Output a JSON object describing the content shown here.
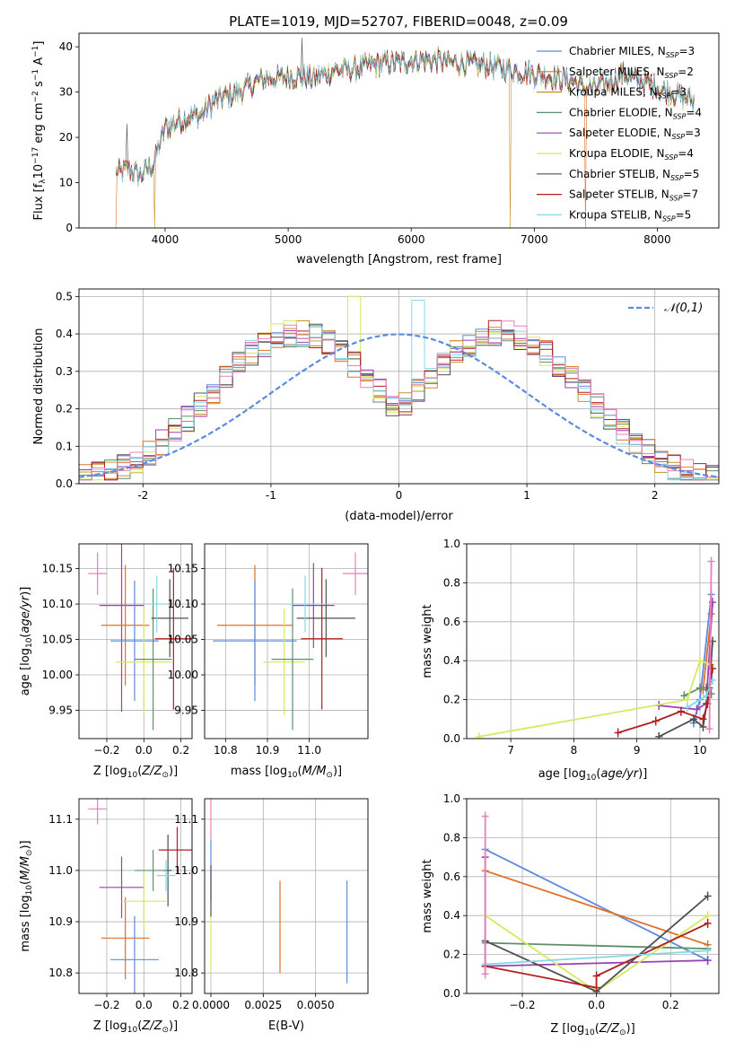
{
  "figure_title": "PLATE=1019, MJD=52707, FIBERID=0048, z=0.09",
  "colors": {
    "Chabrier MILES": "#5b8be0",
    "Salpeter MILES": "#e07028",
    "Kroupa MILES": "#c8902a",
    "Chabrier ELODIE": "#5f8f68",
    "Salpeter ELODIE": "#9b3fb5",
    "Kroupa ELODIE": "#d8e860",
    "Chabrier STELIB": "#505050",
    "Salpeter STELIB": "#b02020",
    "Kroupa STELIB": "#80d8e8",
    "pink": "#e880b8"
  },
  "chart_data": [
    {
      "type": "line",
      "title": "PLATE=1019, MJD=52707, FIBERID=0048, z=0.09",
      "xlabel": "wavelength [Angstrom, rest frame]",
      "ylabel": "Flux [f_λ 10^-17 erg cm^-2 s^-1 A^-1]",
      "xlim": [
        3300,
        8500
      ],
      "ylim": [
        0,
        43
      ],
      "xticks": [
        4000,
        5000,
        6000,
        7000,
        8000
      ],
      "yticks": [
        0,
        10,
        20,
        30,
        40
      ],
      "legend_position": "top-right",
      "continuum": [
        [
          3600,
          12
        ],
        [
          3700,
          13
        ],
        [
          3800,
          11.5
        ],
        [
          3900,
          14
        ],
        [
          3950,
          18
        ],
        [
          4000,
          22
        ],
        [
          4100,
          23.5
        ],
        [
          4200,
          24.5
        ],
        [
          4300,
          25
        ],
        [
          4400,
          28
        ],
        [
          4500,
          29
        ],
        [
          4600,
          30
        ],
        [
          4700,
          31.5
        ],
        [
          4800,
          33
        ],
        [
          4900,
          33
        ],
        [
          5000,
          33.5
        ],
        [
          5100,
          33.5
        ],
        [
          5200,
          33
        ],
        [
          5300,
          34
        ],
        [
          5400,
          35
        ],
        [
          5500,
          35
        ],
        [
          5600,
          35.5
        ],
        [
          5700,
          36
        ],
        [
          5800,
          36.5
        ],
        [
          5900,
          36.5
        ],
        [
          6000,
          37
        ],
        [
          6100,
          37
        ],
        [
          6200,
          37
        ],
        [
          6300,
          36.5
        ],
        [
          6400,
          36.5
        ],
        [
          6500,
          36
        ],
        [
          6600,
          36
        ],
        [
          6700,
          35.5
        ],
        [
          6800,
          35
        ],
        [
          6900,
          34.5
        ],
        [
          7000,
          34
        ],
        [
          7100,
          33.5
        ],
        [
          7200,
          33
        ],
        [
          7300,
          32.5
        ],
        [
          7400,
          31
        ],
        [
          7500,
          31
        ],
        [
          7600,
          32
        ],
        [
          7700,
          34
        ],
        [
          7800,
          33
        ],
        [
          7900,
          32
        ],
        [
          8000,
          31
        ],
        [
          8100,
          30
        ],
        [
          8200,
          29
        ],
        [
          8300,
          28
        ]
      ],
      "series": [
        {
          "name": "Chabrier MILES, N_SSP=3",
          "label_main": "Chabrier MILES, N",
          "label_sub": "SSP",
          "label_tail": "=3"
        },
        {
          "name": "Salpeter MILES, N_SSP=2",
          "label_main": "Salpeter MILES, N",
          "label_sub": "SSP",
          "label_tail": "=2"
        },
        {
          "name": "Kroupa MILES, N_SSP=3",
          "label_main": "Kroupa MILES, N",
          "label_sub": "SSP",
          "label_tail": "=3"
        },
        {
          "name": "Chabrier ELODIE, N_SSP=4",
          "label_main": "Chabrier ELODIE, N",
          "label_sub": "SSP",
          "label_tail": "=4"
        },
        {
          "name": "Salpeter ELODIE, N_SSP=3",
          "label_main": "Salpeter ELODIE, N",
          "label_sub": "SSP",
          "label_tail": "=3"
        },
        {
          "name": "Kroupa ELODIE, N_SSP=4",
          "label_main": "Kroupa ELODIE, N",
          "label_sub": "SSP",
          "label_tail": "=4"
        },
        {
          "name": "Chabrier STELIB, N_SSP=5",
          "label_main": "Chabrier STELIB, N",
          "label_sub": "SSP",
          "label_tail": "=5"
        },
        {
          "name": "Salpeter STELIB, N_SSP=7",
          "label_main": "Salpeter STELIB, N",
          "label_sub": "SSP",
          "label_tail": "=7"
        },
        {
          "name": "Kroupa STELIB, N_SSP=5",
          "label_main": "Kroupa STELIB, N",
          "label_sub": "SSP",
          "label_tail": "=5"
        }
      ]
    },
    {
      "type": "histogram",
      "xlabel": "(data-model)/error",
      "ylabel": "Normed distribution",
      "xlim": [
        -2.5,
        2.5
      ],
      "ylim": [
        0,
        0.52
      ],
      "xticks": [
        -2,
        -1,
        0,
        1,
        2
      ],
      "yticks": [
        0.0,
        0.1,
        0.2,
        0.3,
        0.4,
        0.5
      ],
      "grid": true,
      "legend": "𝒩(0,1)",
      "legend_position": "top-right",
      "bin_width": 0.1,
      "series_envelope": [
        0.02,
        0.022,
        0.025,
        0.028,
        0.033,
        0.038,
        0.045,
        0.053,
        0.062,
        0.072,
        0.084,
        0.097,
        0.11,
        0.125,
        0.14,
        0.157,
        0.174,
        0.192,
        0.21,
        0.228,
        0.246,
        0.264,
        0.282,
        0.3,
        0.318,
        0.334,
        0.348,
        0.362,
        0.374,
        0.384,
        0.392,
        0.398,
        0.401,
        0.402,
        0.401,
        0.398,
        0.392,
        0.384,
        0.374,
        0.362,
        0.348,
        0.334,
        0.318,
        0.3,
        0.282,
        0.264,
        0.246,
        0.228,
        0.21,
        0.192
      ]
    },
    {
      "type": "scatter",
      "xlabel": "Z [log10(Z/Z⊙)]",
      "ylabel": "age  [log10(age/yr)]",
      "xlim": [
        -0.35,
        0.26
      ],
      "ylim": [
        9.91,
        10.185
      ],
      "xticks": [
        -0.2,
        0.0,
        0.2
      ],
      "xtick_labels": [
        "−0.2",
        "0.0",
        "0.2"
      ],
      "yticks": [
        9.95,
        10.0,
        10.05,
        10.1,
        10.15
      ],
      "ytick_labels": [
        "9.95",
        "10.00",
        "10.05",
        "10.10",
        "10.15"
      ],
      "grid": true,
      "points": [
        {
          "series": "pink",
          "x": -0.25,
          "y": 10.143,
          "xerr": 0.05,
          "yerr": 0.03
        },
        {
          "series": "Salpeter ELODIE",
          "x": -0.12,
          "y": 10.098,
          "xerr": 0.12,
          "yerr": 0.15
        },
        {
          "series": "Salpeter MILES",
          "x": -0.1,
          "y": 10.07,
          "xerr": 0.13,
          "yerr": 0.085
        },
        {
          "series": "Chabrier MILES",
          "x": -0.05,
          "y": 10.048,
          "xerr": 0.13,
          "yerr": 0.085
        },
        {
          "series": "Kroupa ELODIE",
          "x": 0.0,
          "y": 10.018,
          "xerr": 0.15,
          "yerr": 0.075
        },
        {
          "series": "Chabrier ELODIE",
          "x": 0.05,
          "y": 10.022,
          "xerr": 0.1,
          "yerr": 0.1
        },
        {
          "series": "Chabrier STELIB",
          "x": 0.14,
          "y": 10.08,
          "xerr": 0.1,
          "yerr": 0.055
        },
        {
          "series": "Salpeter STELIB",
          "x": 0.16,
          "y": 10.051,
          "xerr": 0.1,
          "yerr": 0.1
        },
        {
          "series": "Kroupa STELIB",
          "x": 0.07,
          "y": 10.1,
          "xerr": 0.05,
          "yerr": 0.04
        }
      ]
    },
    {
      "type": "scatter",
      "xlabel": "mass [log10(M/M⊙)]",
      "xlim": [
        10.75,
        11.14
      ],
      "ylim": [
        9.91,
        10.185
      ],
      "xticks": [
        10.8,
        10.9,
        11.0
      ],
      "xtick_labels": [
        "10.8",
        "10.9",
        "11.0"
      ],
      "yticks": [
        9.95,
        10.0,
        10.05,
        10.1,
        10.15
      ],
      "ytick_labels": [
        "9.95",
        "10.00",
        "10.05",
        "10.10",
        "10.15"
      ],
      "grid": true,
      "points": [
        {
          "series": "pink",
          "x": 11.11,
          "y": 10.143,
          "xerr": 0.03,
          "yerr": 0.03
        },
        {
          "series": "Salpeter ELODIE",
          "x": 11.01,
          "y": 10.098,
          "xerr": 0.05,
          "yerr": 0.06
        },
        {
          "series": "Salpeter MILES",
          "x": 10.87,
          "y": 10.07,
          "xerr": 0.09,
          "yerr": 0.085
        },
        {
          "series": "Chabrier MILES",
          "x": 10.87,
          "y": 10.048,
          "xerr": 0.1,
          "yerr": 0.085
        },
        {
          "series": "Kroupa ELODIE",
          "x": 10.94,
          "y": 10.018,
          "xerr": 0.05,
          "yerr": 0.075
        },
        {
          "series": "Chabrier ELODIE",
          "x": 10.96,
          "y": 10.022,
          "xerr": 0.05,
          "yerr": 0.1
        },
        {
          "series": "Chabrier STELIB",
          "x": 11.04,
          "y": 10.08,
          "xerr": 0.07,
          "yerr": 0.055
        },
        {
          "series": "Salpeter STELIB",
          "x": 11.03,
          "y": 10.051,
          "xerr": 0.05,
          "yerr": 0.1
        },
        {
          "series": "Kroupa STELIB",
          "x": 10.99,
          "y": 10.1,
          "xerr": 0.05,
          "yerr": 0.04
        }
      ]
    },
    {
      "type": "line",
      "xlabel": "age  [log10(age/yr)]",
      "ylabel": "mass weight",
      "xlim": [
        6.3,
        10.3
      ],
      "ylim": [
        0,
        1
      ],
      "xticks": [
        7,
        8,
        9,
        10
      ],
      "yticks": [
        0.0,
        0.2,
        0.4,
        0.6,
        0.8,
        1.0
      ],
      "grid": true,
      "series": [
        {
          "name": "Chabrier MILES",
          "points": [
            [
              9.9,
              0.08
            ],
            [
              10.0,
              0.2
            ],
            [
              10.18,
              0.74
            ]
          ]
        },
        {
          "name": "Salpeter MILES",
          "points": [
            [
              10.05,
              0.25
            ],
            [
              10.18,
              0.64
            ]
          ]
        },
        {
          "name": "Chabrier ELODIE",
          "points": [
            [
              9.75,
              0.22
            ],
            [
              10.0,
              0.26
            ],
            [
              10.1,
              0.26
            ],
            [
              10.18,
              0.23
            ]
          ]
        },
        {
          "name": "Salpeter ELODIE",
          "points": [
            [
              9.35,
              0.17
            ],
            [
              9.95,
              0.15
            ],
            [
              10.1,
              0.18
            ],
            [
              10.2,
              0.7
            ]
          ]
        },
        {
          "name": "Kroupa ELODIE",
          "points": [
            [
              6.5,
              0.01
            ],
            [
              9.8,
              0.2
            ],
            [
              10.0,
              0.4
            ],
            [
              10.18,
              0.38
            ]
          ]
        },
        {
          "name": "Chabrier STELIB",
          "points": [
            [
              9.35,
              0.01
            ],
            [
              9.9,
              0.1
            ],
            [
              10.05,
              0.06
            ],
            [
              10.15,
              0.26
            ],
            [
              10.2,
              0.5
            ]
          ]
        },
        {
          "name": "Salpeter STELIB",
          "points": [
            [
              8.7,
              0.03
            ],
            [
              9.3,
              0.09
            ],
            [
              9.7,
              0.14
            ],
            [
              10.05,
              0.1
            ],
            [
              10.12,
              0.18
            ],
            [
              10.2,
              0.36
            ]
          ]
        },
        {
          "name": "Kroupa STELIB",
          "points": [
            [
              9.8,
              0.16
            ],
            [
              10.1,
              0.22
            ],
            [
              10.2,
              0.3
            ]
          ]
        },
        {
          "name": "pink",
          "points": [
            [
              10.15,
              0.05
            ],
            [
              10.18,
              0.91
            ]
          ]
        }
      ]
    },
    {
      "type": "scatter",
      "xlabel": "Z [log10(Z/Z⊙)]",
      "ylabel": "mass [log10(M/M⊙)]",
      "xlim": [
        -0.35,
        0.26
      ],
      "ylim": [
        10.76,
        11.14
      ],
      "xticks": [
        -0.2,
        0.0,
        0.2
      ],
      "xtick_labels": [
        "−0.2",
        "0.0",
        "0.2"
      ],
      "yticks": [
        10.8,
        10.9,
        11.0,
        11.1
      ],
      "ytick_labels": [
        "10.8",
        "10.9",
        "11.0",
        "11.1"
      ],
      "grid": true,
      "points": [
        {
          "series": "pink",
          "x": -0.25,
          "y": 11.12,
          "xerr": 0.05,
          "yerr": 0.03
        },
        {
          "series": "Salpeter ELODIE",
          "x": -0.12,
          "y": 10.967,
          "xerr": 0.12,
          "yerr": 0.06
        },
        {
          "series": "Salpeter MILES",
          "x": -0.1,
          "y": 10.868,
          "xerr": 0.13,
          "yerr": 0.08
        },
        {
          "series": "Chabrier MILES",
          "x": -0.05,
          "y": 10.826,
          "xerr": 0.13,
          "yerr": 0.085
        },
        {
          "series": "Kroupa ELODIE",
          "x": 0.0,
          "y": 10.94,
          "xerr": 0.12,
          "yerr": 0.055
        },
        {
          "series": "Chabrier ELODIE",
          "x": 0.05,
          "y": 11.0,
          "xerr": 0.1,
          "yerr": 0.04
        },
        {
          "series": "Chabrier STELIB",
          "x": 0.13,
          "y": 11.0,
          "xerr": 0.02,
          "yerr": 0.07
        },
        {
          "series": "Salpeter STELIB",
          "x": 0.18,
          "y": 11.04,
          "xerr": 0.1,
          "yerr": 0.045
        },
        {
          "series": "Kroupa STELIB",
          "x": 0.12,
          "y": 10.99,
          "xerr": 0.05,
          "yerr": 0.03
        }
      ]
    },
    {
      "type": "scatter",
      "xlabel": "E(B-V)",
      "xlim": [
        -0.0003,
        0.0075
      ],
      "ylim": [
        10.76,
        11.14
      ],
      "xticks": [
        0.0,
        0.0025,
        0.005
      ],
      "xtick_labels": [
        "0.0000",
        "0.0025",
        "0.0050"
      ],
      "yticks": [
        10.8,
        10.9,
        11.0,
        11.1
      ],
      "ytick_labels": [
        "10.8",
        "10.9",
        "11.0",
        "11.1"
      ],
      "grid": true,
      "points": [
        {
          "series": "pink",
          "x": 0.0,
          "y": 11.1,
          "xerr": 0,
          "yerr": 0.04
        },
        {
          "series": "Chabrier MILES",
          "x": 0.0,
          "y": 11.0,
          "xerr": 0,
          "yerr": 0.06
        },
        {
          "series": "Kroupa ELODIE",
          "x": 0.0,
          "y": 10.86,
          "xerr": 0,
          "yerr": 0.06
        },
        {
          "series": "Chabrier STELIB",
          "x": 0.0,
          "y": 10.96,
          "xerr": 0,
          "yerr": 0.05
        },
        {
          "series": "Salpeter MILES",
          "x": 0.0033,
          "y": 10.89,
          "xerr": 0,
          "yerr": 0.09
        },
        {
          "series": "Chabrier MILES",
          "x": 0.0065,
          "y": 10.88,
          "xerr": 0,
          "yerr": 0.1
        }
      ]
    },
    {
      "type": "line",
      "xlabel": "Z [log10(Z/Z⊙)]",
      "ylabel": "mass weight",
      "xlim": [
        -0.35,
        0.33
      ],
      "ylim": [
        0,
        1
      ],
      "xticks": [
        -0.2,
        0.0,
        0.2
      ],
      "xtick_labels": [
        "−0.2",
        "0.0",
        "0.2"
      ],
      "yticks": [
        0.0,
        0.2,
        0.4,
        0.6,
        0.8,
        1.0
      ],
      "grid": true,
      "series": [
        {
          "name": "Chabrier MILES",
          "points": [
            [
              -0.3,
              0.74
            ],
            [
              0.3,
              0.17
            ]
          ]
        },
        {
          "name": "Salpeter MILES",
          "points": [
            [
              -0.3,
              0.63
            ],
            [
              0.3,
              0.25
            ]
          ]
        },
        {
          "name": "Chabrier ELODIE",
          "points": [
            [
              -0.3,
              0.26
            ],
            [
              0.3,
              0.23
            ]
          ]
        },
        {
          "name": "Salpeter ELODIE",
          "points": [
            [
              -0.3,
              0.7
            ],
            [
              -0.3,
              0.14
            ],
            [
              0.3,
              0.17
            ]
          ]
        },
        {
          "name": "Kroupa ELODIE",
          "points": [
            [
              -0.3,
              0.4
            ],
            [
              0.0,
              0.01
            ],
            [
              0.3,
              0.4
            ]
          ]
        },
        {
          "name": "Chabrier STELIB",
          "points": [
            [
              -0.3,
              0.27
            ],
            [
              0.0,
              0.01
            ],
            [
              0.3,
              0.5
            ]
          ]
        },
        {
          "name": "Salpeter STELIB",
          "points": [
            [
              -0.3,
              0.14
            ],
            [
              0.0,
              0.03
            ],
            [
              0.0,
              0.09
            ],
            [
              0.3,
              0.36
            ]
          ]
        },
        {
          "name": "Kroupa STELIB",
          "points": [
            [
              -0.3,
              0.15
            ],
            [
              0.3,
              0.22
            ]
          ]
        },
        {
          "name": "pink",
          "points": [
            [
              -0.3,
              0.91
            ],
            [
              -0.3,
              0.1
            ]
          ]
        }
      ]
    }
  ]
}
